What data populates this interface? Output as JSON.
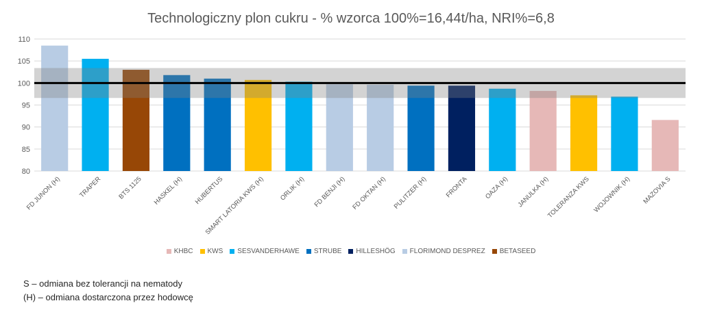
{
  "chart_data": {
    "type": "bar",
    "title": "Technologiczny plon cukru - % wzorca 100%=16,44t/ha, NRI%=6,8",
    "categories": [
      "FD JUNON (H)",
      "TRAPER",
      "BTS 1125",
      "HASKEL (H)",
      "HUBERTUS",
      "SMART LATORIA KWS (H)",
      "ORLIK (H)",
      "FD BENJI (H)",
      "FD OKTAN (H)",
      "PULITZER (H)",
      "FRONTA",
      "OAZA (H)",
      "JANULKA (H)",
      "TOLERANZA KWS",
      "WOJOWNIK (H)",
      "MAZOVIA S"
    ],
    "values": [
      108.5,
      105.5,
      103.0,
      101.8,
      101.0,
      100.7,
      100.3,
      99.7,
      99.6,
      99.4,
      99.4,
      98.7,
      98.2,
      97.2,
      96.9,
      91.6
    ],
    "breeders": [
      "FLORIMOND DESPREZ",
      "SESVANDERHAWE",
      "BETASEED",
      "STRUBE",
      "STRUBE",
      "KWS",
      "SESVANDERHAWE",
      "FLORIMOND DESPREZ",
      "FLORIMOND DESPREZ",
      "STRUBE",
      "HILLESHÖG",
      "SESVANDERHAWE",
      "KHBC",
      "KWS",
      "SESVANDERHAWE",
      "KHBC"
    ],
    "ylim": [
      80,
      110
    ],
    "yticks": [
      80,
      85,
      90,
      95,
      100,
      105,
      110
    ],
    "reference_line": 100,
    "nri_band": [
      96.6,
      103.4
    ],
    "grid": true,
    "legend_position": "bottom",
    "legend": [
      {
        "name": "KHBC",
        "color": "#e6b8b7"
      },
      {
        "name": "KWS",
        "color": "#ffc000"
      },
      {
        "name": "SESVANDERHAWE",
        "color": "#00b0f0"
      },
      {
        "name": "STRUBE",
        "color": "#0070c0"
      },
      {
        "name": "HILLESHÖG",
        "color": "#002060"
      },
      {
        "name": "FLORIMOND DESPREZ",
        "color": "#b8cce4"
      },
      {
        "name": "BETASEED",
        "color": "#974706"
      }
    ]
  },
  "notes": [
    "S – odmiana bez tolerancji na nematody",
    "(H) – odmiana dostarczona przez hodowcę"
  ]
}
